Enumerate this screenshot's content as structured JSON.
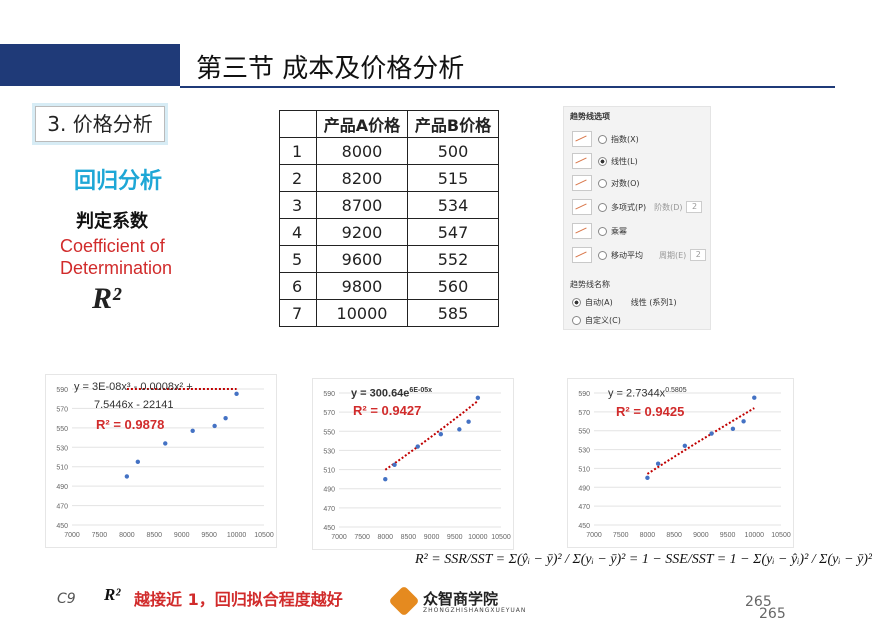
{
  "header": {
    "title": "第三节  成本及价格分析"
  },
  "section": {
    "tag": "3. 价格分析"
  },
  "left": {
    "regression": "回归分析",
    "coef_cn": "判定系数",
    "coef_en_1": "Coefficient of",
    "coef_en_2": "Determination",
    "r2": "R²"
  },
  "table": {
    "headers": [
      "",
      "产品A价格",
      "产品B价格"
    ],
    "rows": [
      [
        "1",
        "8000",
        "500"
      ],
      [
        "2",
        "8200",
        "515"
      ],
      [
        "3",
        "8700",
        "534"
      ],
      [
        "4",
        "9200",
        "547"
      ],
      [
        "5",
        "9600",
        "552"
      ],
      [
        "6",
        "9800",
        "560"
      ],
      [
        "7",
        "10000",
        "585"
      ]
    ]
  },
  "trend_panel": {
    "title": "趋势线选项",
    "options": [
      "指数(X)",
      "线性(L)",
      "对数(O)",
      "多项式(P)",
      "乘幂",
      "移动平均"
    ],
    "order_label": "阶数(D)",
    "order_value": "2",
    "period_label": "周期(E)",
    "period_value": "2",
    "name_title": "趋势线名称",
    "auto_label": "自动(A)",
    "auto_value": "线性 (系列1)",
    "custom_label": "自定义(C)",
    "selected": "线性(L)"
  },
  "chart_data": [
    {
      "type": "scatter",
      "trendline": "polynomial",
      "x": [
        8000,
        8200,
        8700,
        9200,
        9600,
        9800,
        10000
      ],
      "y": [
        500,
        515,
        534,
        547,
        552,
        560,
        585
      ],
      "xlim": [
        7000,
        10500
      ],
      "ylim": [
        450,
        590
      ],
      "xticks": [
        7000,
        7500,
        8000,
        8500,
        9000,
        9500,
        10000,
        10500
      ],
      "yticks": [
        450,
        470,
        490,
        510,
        530,
        550,
        570,
        590
      ],
      "equation_1": "y = 3E-08x³ - 0.0008x² +",
      "equation_2": "7.5446x - 22141",
      "r2": "R² = 0.9878",
      "grid": true,
      "point_color": "#4472c4",
      "trend_color": "#c00000"
    },
    {
      "type": "scatter",
      "trendline": "exponential",
      "x": [
        8000,
        8200,
        8700,
        9200,
        9600,
        9800,
        10000
      ],
      "y": [
        500,
        515,
        534,
        547,
        552,
        560,
        585
      ],
      "xlim": [
        7000,
        10500
      ],
      "ylim": [
        450,
        590
      ],
      "xticks": [
        7000,
        7500,
        8000,
        8500,
        9000,
        9500,
        10000,
        10500
      ],
      "yticks": [
        450,
        470,
        490,
        510,
        530,
        550,
        570,
        590
      ],
      "equation_1": "y = 300.64e",
      "equation_sup": "6E-05x",
      "r2": "R² = 0.9427",
      "grid": true,
      "point_color": "#4472c4",
      "trend_color": "#c00000"
    },
    {
      "type": "scatter",
      "trendline": "power",
      "x": [
        8000,
        8200,
        8700,
        9200,
        9600,
        9800,
        10000
      ],
      "y": [
        500,
        515,
        534,
        547,
        552,
        560,
        585
      ],
      "xlim": [
        7000,
        10500
      ],
      "ylim": [
        450,
        590
      ],
      "xticks": [
        7000,
        7500,
        8000,
        8500,
        9000,
        9500,
        10000,
        10500
      ],
      "yticks": [
        450,
        470,
        490,
        510,
        530,
        550,
        570,
        590
      ],
      "equation_1": "y = 2.7344x",
      "equation_sup": "0.5805",
      "r2": "R² = 0.9425",
      "grid": true,
      "point_color": "#4472c4",
      "trend_color": "#c00000"
    }
  ],
  "formula": "R² = SSR/SST = Σ(ŷᵢ − ȳ)² / Σ(yᵢ − ȳ)² = 1 − SSE/SST = 1 − Σ(yᵢ − ŷᵢ)² / Σ(yᵢ − ȳ)²",
  "footer": {
    "c9": "C9",
    "r2": "R²",
    "note": "越接近 1，回归拟合程度越好",
    "logo_name": "众智商学院",
    "logo_sub": "ZHONGZHISHANGXUEYUAN",
    "page_1": "265",
    "page_2": "265"
  }
}
